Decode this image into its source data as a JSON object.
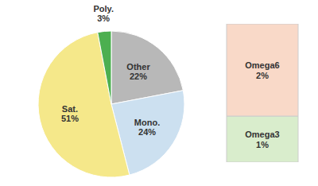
{
  "chart_data": [
    {
      "type": "pie",
      "categories": [
        "Other",
        "Mono.",
        "Sat.",
        "Poly."
      ],
      "values": [
        22,
        24,
        51,
        3
      ],
      "value_labels": [
        "22%",
        "24%",
        "51%",
        "3%"
      ],
      "colors": [
        "#b8b8b8",
        "#cce0f0",
        "#f5e88a",
        "#4caf50"
      ],
      "data_labels": true
    },
    {
      "type": "bar",
      "stacked": true,
      "categories": [
        null
      ],
      "series": [
        {
          "name": "Omega6",
          "color": "#f9d9c8",
          "values": [
            2
          ],
          "value_labels": [
            "2%"
          ]
        },
        {
          "name": "Omega3",
          "color": "#d9edcc",
          "values": [
            1
          ],
          "value_labels": [
            "1%"
          ]
        }
      ],
      "ylim": [
        0,
        3
      ],
      "data_labels": true,
      "tick_labels": false
    }
  ]
}
